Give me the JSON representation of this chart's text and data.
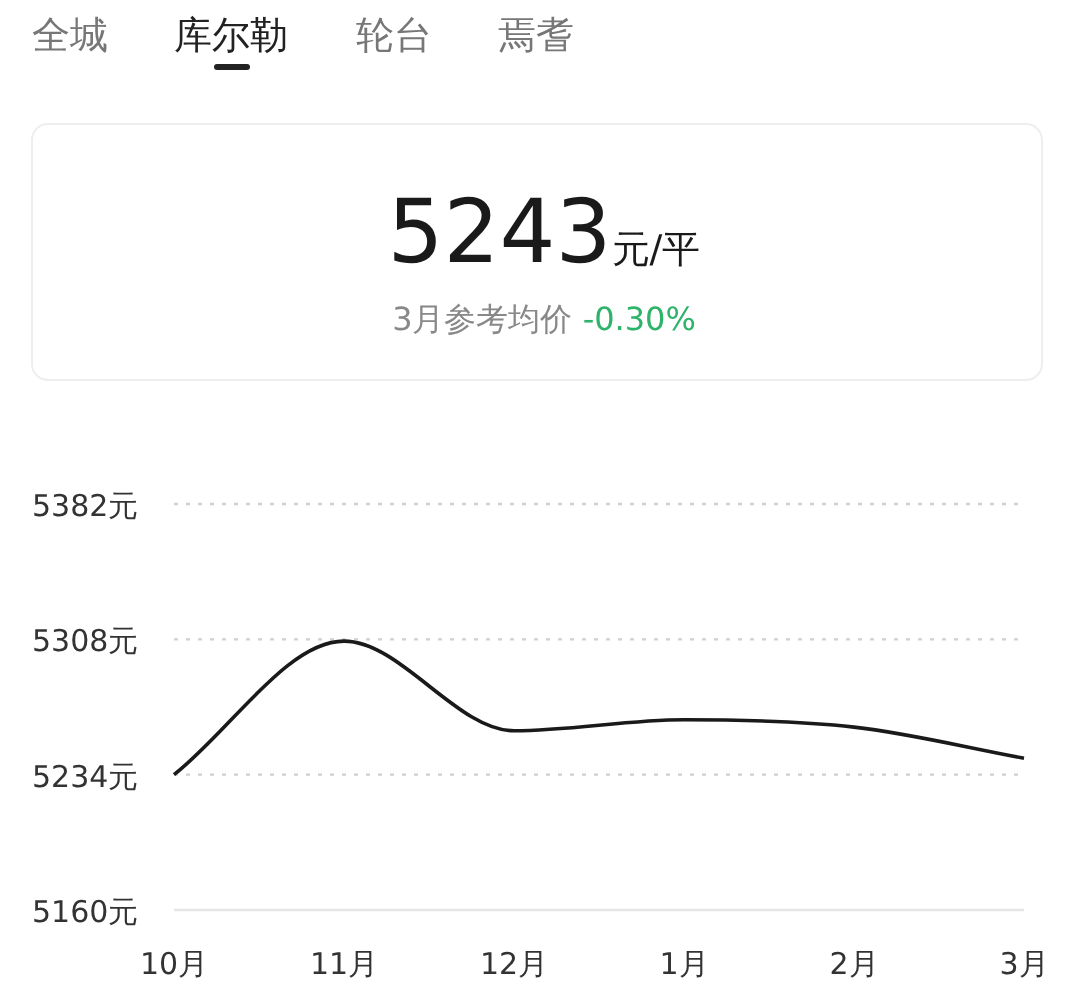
{
  "chart_data": {
    "type": "line",
    "title": "5243元/平",
    "subtitle": "3月参考均价 -0.30%",
    "annotations": [
      "全城",
      "库尔勒",
      "轮台",
      "焉耆"
    ],
    "categories": [
      "10月",
      "11月",
      "12月",
      "1月",
      "2月",
      "3月"
    ],
    "series": [
      {
        "color": "#1a1a1a",
        "values": [
          5234,
          5307,
          5258,
          5264,
          5260,
          5243
        ]
      }
    ],
    "ylim": [
      5160,
      5382
    ],
    "yticks": [
      {
        "value": 5160,
        "label": "5160元"
      },
      {
        "value": 5234,
        "label": "5234元"
      },
      {
        "value": 5308,
        "label": "5308元"
      },
      {
        "value": 5382,
        "label": "5382元"
      }
    ],
    "grid": "y",
    "marker": "none",
    "line_style": "solid"
  }
}
